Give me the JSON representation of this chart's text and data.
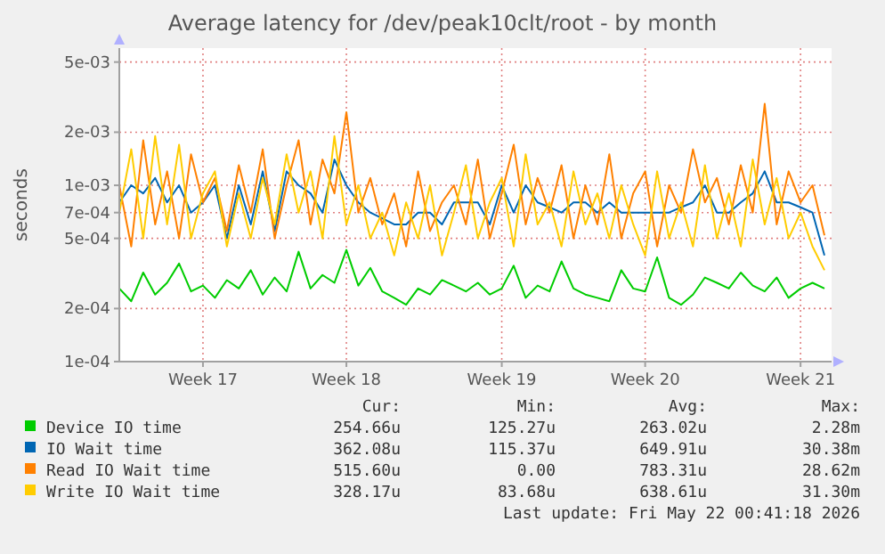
{
  "chart_data": {
    "type": "line",
    "title": "Average latency for /dev/peak10clt/root - by month",
    "ylabel": "seconds",
    "log": "y",
    "grid": true,
    "legend": "bottom",
    "marker": "none",
    "line_style": "solid",
    "categories": [
      null,
      null,
      null,
      null,
      null,
      null,
      null,
      "Week 17",
      null,
      null,
      null,
      null,
      null,
      null,
      null,
      null,
      null,
      null,
      null,
      "Week 18",
      null,
      null,
      null,
      null,
      null,
      null,
      null,
      null,
      null,
      null,
      null,
      null,
      "Week 19",
      null,
      null,
      null,
      null,
      null,
      null,
      null,
      null,
      null,
      null,
      null,
      "Week 20",
      null,
      null,
      null,
      null,
      null,
      null,
      null,
      null,
      null,
      null,
      null,
      null,
      "Week 21",
      null,
      null
    ],
    "ylim": [
      0.0001,
      0.006
    ],
    "yticks": [
      {
        "value": 0.0001,
        "label": "1e-04"
      },
      {
        "value": 0.0002,
        "label": "2e-04"
      },
      {
        "value": 0.0005,
        "label": "5e-04"
      },
      {
        "value": 0.0007,
        "label": "7e-04"
      },
      {
        "value": 0.001,
        "label": "1e-03"
      },
      {
        "value": 0.002,
        "label": "2e-03"
      },
      {
        "value": 0.005,
        "label": "5e-03"
      }
    ],
    "series": [
      {
        "name": "Device IO time",
        "color": "#00cc00",
        "values": [
          0.00026,
          0.00022,
          0.00032,
          0.00024,
          0.00028,
          0.00036,
          0.00025,
          0.00027,
          0.00023,
          0.00029,
          0.00026,
          0.00033,
          0.00024,
          0.0003,
          0.00025,
          0.00042,
          0.00026,
          0.00031,
          0.00028,
          0.00043,
          0.00027,
          0.00034,
          0.00025,
          0.00023,
          0.00021,
          0.00026,
          0.00024,
          0.00029,
          0.00027,
          0.00025,
          0.00028,
          0.00024,
          0.00026,
          0.00035,
          0.00023,
          0.00027,
          0.00025,
          0.00037,
          0.00026,
          0.00024,
          0.00023,
          0.00022,
          0.00033,
          0.00026,
          0.00025,
          0.00039,
          0.00023,
          0.00021,
          0.00024,
          0.0003,
          0.00028,
          0.00026,
          0.00032,
          0.00027,
          0.00025,
          0.0003,
          0.00023,
          0.00026,
          0.00028,
          0.00026
        ]
      },
      {
        "name": "IO Wait time",
        "color": "#0066b3",
        "values": [
          0.0008,
          0.001,
          0.0009,
          0.0011,
          0.0008,
          0.001,
          0.0007,
          0.0008,
          0.001,
          0.0005,
          0.001,
          0.0006,
          0.0012,
          0.00055,
          0.0012,
          0.001,
          0.0009,
          0.0007,
          0.0014,
          0.001,
          0.0008,
          0.0007,
          0.00065,
          0.0006,
          0.0006,
          0.0007,
          0.0007,
          0.0006,
          0.0008,
          0.0008,
          0.0008,
          0.0006,
          0.001,
          0.0007,
          0.001,
          0.0008,
          0.00075,
          0.0007,
          0.0008,
          0.0008,
          0.0007,
          0.0008,
          0.0007,
          0.0007,
          0.0007,
          0.0007,
          0.0007,
          0.00075,
          0.0008,
          0.001,
          0.0007,
          0.0007,
          0.0008,
          0.0009,
          0.0012,
          0.0008,
          0.0008,
          0.00075,
          0.0007,
          0.0004
        ]
      },
      {
        "name": "Read IO Wait time",
        "color": "#ff8000",
        "values": [
          0.001,
          0.00045,
          0.0018,
          0.0006,
          0.0012,
          0.0005,
          0.0015,
          0.0008,
          0.0011,
          0.00055,
          0.0013,
          0.0007,
          0.0016,
          0.0005,
          0.001,
          0.0018,
          0.0006,
          0.0014,
          0.0009,
          0.0026,
          0.0007,
          0.0011,
          0.0006,
          0.0009,
          0.00045,
          0.0012,
          0.00055,
          0.0008,
          0.001,
          0.0006,
          0.0014,
          0.0005,
          0.0009,
          0.0017,
          0.0006,
          0.0011,
          0.0007,
          0.0013,
          0.0005,
          0.001,
          0.0006,
          0.0015,
          0.0005,
          0.0009,
          0.0012,
          0.00045,
          0.001,
          0.0007,
          0.0016,
          0.0008,
          0.0011,
          0.0006,
          0.0013,
          0.0007,
          0.0029,
          0.0006,
          0.0012,
          0.0008,
          0.001,
          0.00052
        ]
      },
      {
        "name": "Write IO Wait time",
        "color": "#ffcc00",
        "values": [
          0.0007,
          0.0016,
          0.0005,
          0.0019,
          0.0006,
          0.0017,
          0.0005,
          0.0009,
          0.0012,
          0.00045,
          0.0009,
          0.0005,
          0.0011,
          0.0006,
          0.0015,
          0.0007,
          0.0012,
          0.0005,
          0.0019,
          0.0006,
          0.001,
          0.0005,
          0.0007,
          0.0004,
          0.0008,
          0.0005,
          0.001,
          0.0004,
          0.0007,
          0.0013,
          0.0005,
          0.0008,
          0.0011,
          0.00045,
          0.0015,
          0.0006,
          0.0008,
          0.00045,
          0.0012,
          0.0006,
          0.0009,
          0.0005,
          0.001,
          0.0006,
          0.0004,
          0.0012,
          0.0005,
          0.0008,
          0.00045,
          0.0013,
          0.0005,
          0.0009,
          0.00045,
          0.0014,
          0.0006,
          0.0011,
          0.0005,
          0.0007,
          0.00045,
          0.00033
        ]
      }
    ],
    "annotations": [
      "Cur:",
      "Min:",
      "Avg:",
      "Max:",
      "254.66u",
      "125.27u",
      "263.02u",
      "2.28m",
      "362.08u",
      "115.37u",
      "649.91u",
      "30.38m",
      "515.60u",
      "0.00",
      "783.31u",
      "28.62m",
      "328.17u",
      "83.68u",
      "638.61u",
      "31.30m",
      "Last update: Fri May 22 00:41:18 2026"
    ]
  }
}
